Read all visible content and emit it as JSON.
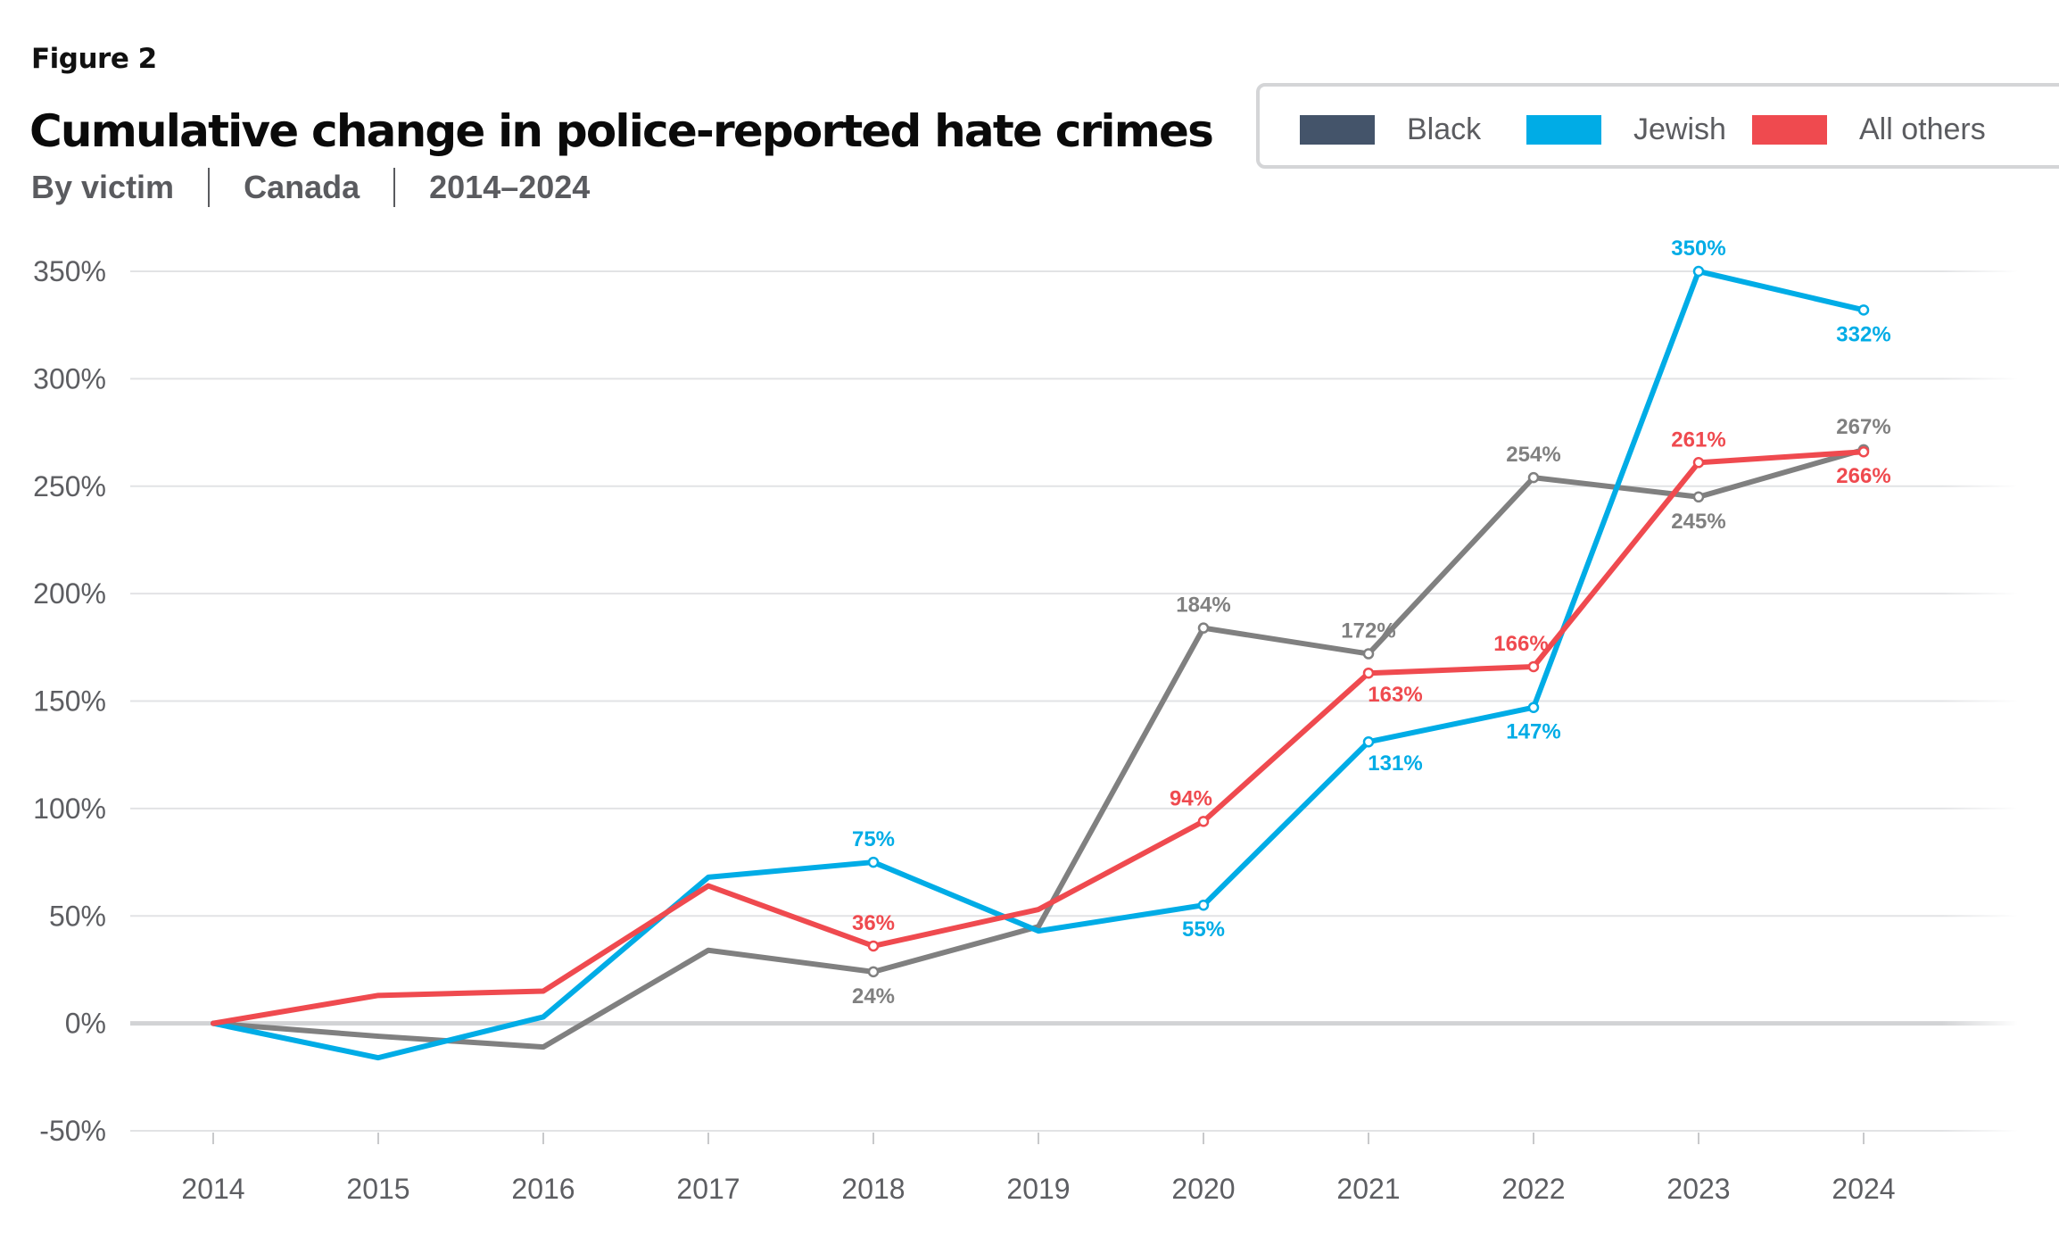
{
  "header": {
    "figure_label": "Figure 2",
    "title": "Cumulative change in police-reported hate crimes",
    "subtitle_parts": [
      "By victim",
      "Canada",
      "2014–2024"
    ]
  },
  "legend": [
    {
      "label": "Black",
      "color": "#44546a"
    },
    {
      "label": "Jewish",
      "color": "#00ace6"
    },
    {
      "label": "All others",
      "color": "#ef4a4f"
    }
  ],
  "chart_data": {
    "type": "line",
    "title": "Cumulative change in police-reported hate crimes",
    "subtitle": "By victim | Canada | 2014–2024",
    "xlabel": "",
    "ylabel": "",
    "x": [
      "2014",
      "2015",
      "2016",
      "2017",
      "2018",
      "2019",
      "2020",
      "2021",
      "2022",
      "2023",
      "2024"
    ],
    "ylim": [
      -50,
      350
    ],
    "yticks": [
      -50,
      0,
      50,
      100,
      150,
      200,
      250,
      300,
      350
    ],
    "ytick_labels": [
      "-50%",
      "0%",
      "50%",
      "100%",
      "150%",
      "200%",
      "250%",
      "300%",
      "350%"
    ],
    "grid": true,
    "legend_position": "top-right",
    "series": [
      {
        "name": "Black",
        "line_color": "#808080",
        "values": [
          0,
          -6,
          -11,
          34,
          24,
          45,
          184,
          172,
          254,
          245,
          267
        ],
        "labels": [
          {
            "index": 4,
            "text": "24%",
            "pos": "below"
          },
          {
            "index": 6,
            "text": "184%",
            "pos": "above"
          },
          {
            "index": 7,
            "text": "172%",
            "pos": "above"
          },
          {
            "index": 8,
            "text": "254%",
            "pos": "above"
          },
          {
            "index": 9,
            "text": "245%",
            "pos": "below"
          },
          {
            "index": 10,
            "text": "267%",
            "pos": "above"
          }
        ]
      },
      {
        "name": "Jewish",
        "line_color": "#00ace6",
        "values": [
          0,
          -16,
          3,
          68,
          75,
          43,
          55,
          131,
          147,
          350,
          332
        ],
        "labels": [
          {
            "index": 4,
            "text": "75%",
            "pos": "above"
          },
          {
            "index": 6,
            "text": "55%",
            "pos": "below"
          },
          {
            "index": 7,
            "text": "131%",
            "pos": "below-right"
          },
          {
            "index": 8,
            "text": "147%",
            "pos": "below"
          },
          {
            "index": 9,
            "text": "350%",
            "pos": "above"
          },
          {
            "index": 10,
            "text": "332%",
            "pos": "below"
          }
        ]
      },
      {
        "name": "All others",
        "line_color": "#ef4a4f",
        "values": [
          0,
          13,
          15,
          64,
          36,
          53,
          94,
          163,
          166,
          261,
          266
        ],
        "labels": [
          {
            "index": 4,
            "text": "36%",
            "pos": "above"
          },
          {
            "index": 6,
            "text": "94%",
            "pos": "above-left"
          },
          {
            "index": 7,
            "text": "163%",
            "pos": "below-right"
          },
          {
            "index": 8,
            "text": "166%",
            "pos": "above-left"
          },
          {
            "index": 9,
            "text": "261%",
            "pos": "above"
          },
          {
            "index": 10,
            "text": "266%",
            "pos": "below"
          }
        ]
      }
    ]
  }
}
